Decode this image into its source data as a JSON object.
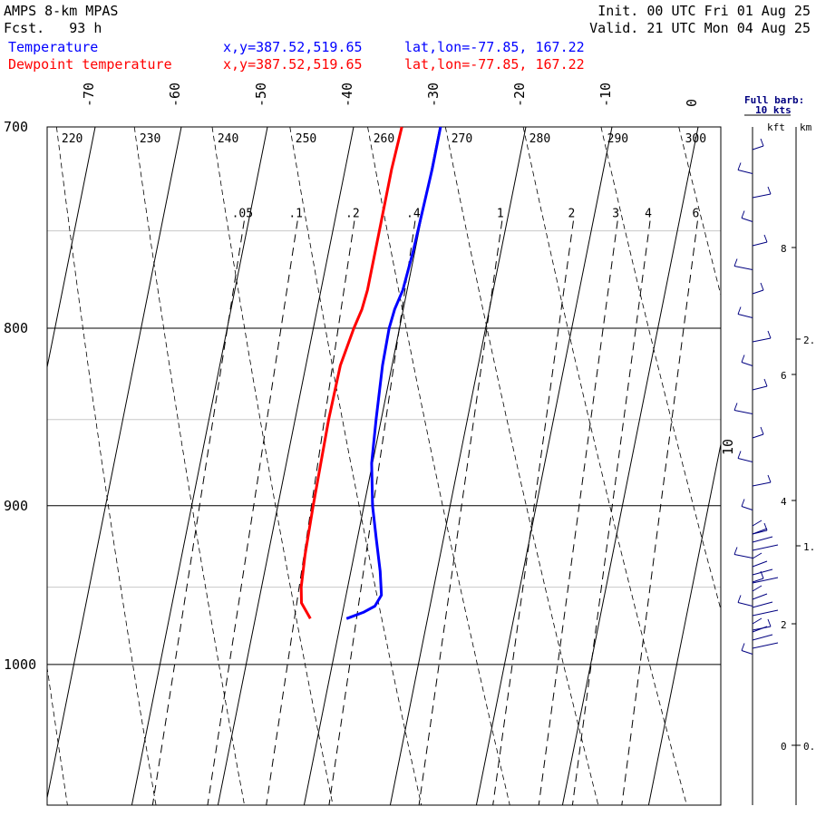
{
  "header": {
    "model": "AMPS 8-km MPAS",
    "fcst": "Fcst.   93 h",
    "init": "Init. 00 UTC Fri 01 Aug 25",
    "valid": "Valid. 21 UTC Mon 04 Aug 25"
  },
  "legend": {
    "temperature": {
      "label": "Temperature",
      "color": "#0000ff",
      "xy": "x,y=387.52,519.65",
      "latlon": "lat,lon=-77.85, 167.22"
    },
    "dewpoint": {
      "label": "Dewpoint temperature",
      "color": "#ff0000",
      "xy": "x,y=387.52,519.65",
      "latlon": "lat,lon=-77.85, 167.22"
    }
  },
  "wind_panel": {
    "barb_note": "Full barb:",
    "barb_speed": "10 kts",
    "kft_label": "kft",
    "km_label": "km"
  },
  "chart_data": {
    "type": "line",
    "skew_t": true,
    "pressure_axis": {
      "label": "",
      "log_scale": true,
      "ylim": [
        1040,
        700
      ],
      "ticks": [
        "700",
        "800",
        "900",
        "1000"
      ]
    },
    "temperature_ticks": [
      "-70",
      "-60",
      "-50",
      "-40",
      "-30",
      "-20",
      "-10",
      "0",
      "10"
    ],
    "dry_adiabat_labels": [
      "220",
      "230",
      "240",
      "250",
      "260",
      "270",
      "280",
      "290",
      "300"
    ],
    "mixing_ratio_labels": [
      ".05",
      ".1",
      ".2",
      ".4",
      "1",
      "2",
      "3",
      "4",
      "6"
    ],
    "series": [
      {
        "name": "Temperature",
        "color": "#0000ff",
        "points": [
          [
            700,
            -29.9
          ],
          [
            720,
            -29.9
          ],
          [
            760,
            -30.2
          ],
          [
            780,
            -30.5
          ],
          [
            790,
            -31.0
          ],
          [
            800,
            -31.2
          ],
          [
            820,
            -31.1
          ],
          [
            850,
            -30.6
          ],
          [
            875,
            -30.1
          ],
          [
            900,
            -29.0
          ],
          [
            920,
            -27.8
          ],
          [
            940,
            -26.6
          ],
          [
            955,
            -25.9
          ],
          [
            962,
            -26.4
          ],
          [
            966,
            -27.6
          ],
          [
            970,
            -29.4
          ]
        ]
      },
      {
        "name": "Dewpoint temperature",
        "color": "#ff0000",
        "points": [
          [
            700,
            -34.4
          ],
          [
            720,
            -34.6
          ],
          [
            750,
            -34.6
          ],
          [
            780,
            -34.6
          ],
          [
            790,
            -34.8
          ],
          [
            800,
            -35.3
          ],
          [
            820,
            -36.0
          ],
          [
            850,
            -36.1
          ],
          [
            900,
            -35.9
          ],
          [
            930,
            -35.7
          ],
          [
            950,
            -35.4
          ],
          [
            960,
            -35.0
          ],
          [
            970,
            -33.6
          ]
        ]
      }
    ],
    "wind_profile": {
      "height_units": [
        "kft",
        "km"
      ],
      "kft_ticks": [
        "0",
        "2",
        "4",
        "6",
        "8"
      ],
      "km_ticks": [
        "0.",
        "1.",
        "2."
      ]
    },
    "legend_position": "top-left",
    "grid": true
  }
}
